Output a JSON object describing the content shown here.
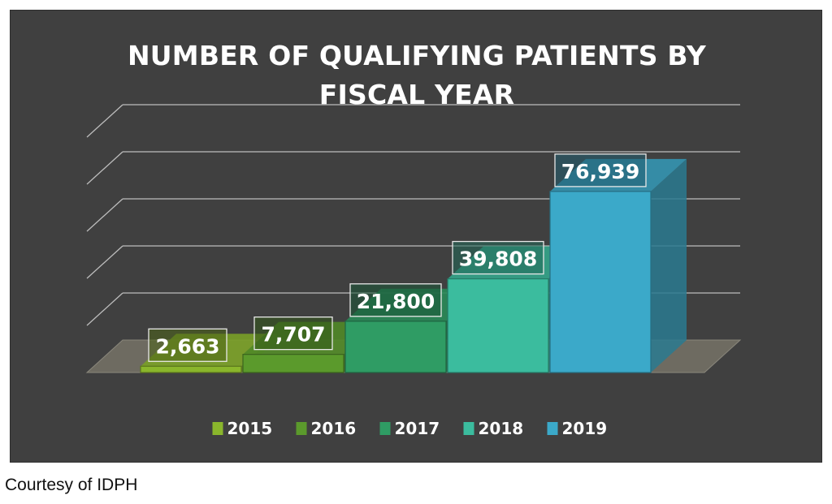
{
  "chart_data": {
    "type": "bar",
    "title": "NUMBER OF QUALIFYING PATIENTS BY\nFISCAL YEAR",
    "categories": [
      "2015",
      "2016",
      "2017",
      "2018",
      "2019"
    ],
    "values": [
      2663,
      7707,
      21800,
      39808,
      76939
    ],
    "value_labels": [
      "2,663",
      "7,707",
      "21,800",
      "39,808",
      "76,939"
    ],
    "xlabel": "",
    "ylabel": "",
    "ylim": [
      0,
      100000
    ],
    "grid": true,
    "legend": "bottom",
    "colors": [
      "#8ab62c",
      "#5b9a2c",
      "#2f9c64",
      "#3bbc9e",
      "#3ba9c9"
    ]
  },
  "footer": {
    "credit": "Courtesy of IDPH"
  }
}
